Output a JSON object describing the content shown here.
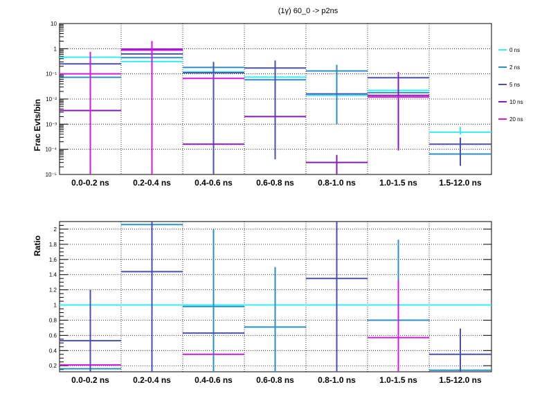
{
  "title": "(1γ) 60_0 -> p2ns",
  "categories": [
    "0.0-0.2 ns",
    "0.2-0.4 ns",
    "0.4-0.6 ns",
    "0.6-0.8 ns",
    "0.8-1.0 ns",
    "1.0-1.5 ns",
    "1.5-12.0 ns"
  ],
  "colors": {
    "0 ns": "#33eef2",
    "2 ns": "#2b8fc4",
    "5 ns": "#4a4fb2",
    "10 ns": "#8a1ab8",
    "20 ns": "#d21adf"
  },
  "chart_data": [
    {
      "type": "histogram",
      "name": "top",
      "ylabel": "Frac Evts/bin",
      "yscale": "log",
      "ylim": [
        1e-05,
        10
      ],
      "ytick_labels": [
        "10",
        "1",
        "10⁻¹",
        "10⁻²",
        "10⁻³",
        "10⁻⁴",
        "10⁻⁵"
      ],
      "grid": true,
      "legend": "right",
      "categories": [
        "0.0-0.2 ns",
        "0.2-0.4 ns",
        "0.4-0.6 ns",
        "0.6-0.8 ns",
        "0.8-1.0 ns",
        "1.0-1.5 ns",
        "1.5-12.0 ns"
      ],
      "series": [
        {
          "name": "0 ns",
          "values": [
            0.46,
            0.31,
            0.12,
            0.074,
            0.014,
            0.022,
            0.00048
          ],
          "err_lo": [
            null,
            null,
            null,
            null,
            null,
            null,
            0.00039
          ],
          "err_hi": [
            null,
            null,
            null,
            null,
            null,
            null,
            0.00078
          ]
        },
        {
          "name": "2 ns",
          "values": [
            0.073,
            0.44,
            0.18,
            0.058,
            0.13,
            0.018,
            6.5e-05
          ],
          "err_lo": [
            null,
            null,
            null,
            null,
            0.001,
            null,
            null
          ],
          "err_hi": [
            null,
            null,
            null,
            null,
            0.23,
            null,
            null
          ]
        },
        {
          "name": "5 ns",
          "values": [
            0.25,
            0.62,
            0.11,
            0.17,
            0.016,
            0.07,
            0.00016
          ],
          "err_lo": [
            null,
            null,
            1e-05,
            4e-05,
            null,
            null,
            2.2e-05
          ],
          "err_hi": [
            null,
            null,
            0.3,
            0.34,
            null,
            null,
            0.00029
          ]
        },
        {
          "name": "10 ns",
          "values": [
            0.0035,
            0.97,
            0.00016,
            0.002,
            3e-05,
            0.014,
            null
          ],
          "err_lo": [
            null,
            1e-05,
            null,
            null,
            1e-05,
            9e-05,
            null
          ],
          "err_hi": [
            null,
            2.0,
            null,
            null,
            6e-05,
            0.12,
            null
          ]
        },
        {
          "name": "20 ns",
          "values": [
            0.1,
            0.87,
            0.066,
            null,
            null,
            0.012,
            null
          ],
          "err_lo": [
            1e-05,
            1e-05,
            null,
            null,
            null,
            null,
            null
          ],
          "err_hi": [
            0.75,
            2.0,
            null,
            null,
            null,
            null,
            null
          ]
        }
      ]
    },
    {
      "type": "histogram",
      "name": "bottom",
      "ylabel": "Ratio",
      "yscale": "linear",
      "ylim": [
        0.12,
        2.1
      ],
      "yticks": [
        0.2,
        0.4,
        0.6,
        0.8,
        1,
        1.2,
        1.4,
        1.6,
        1.8,
        2
      ],
      "ytick_labels": [
        "0.2",
        "0.4",
        "0.6",
        "0.8",
        "1",
        "1.2",
        "1.4",
        "1.6",
        "1.8",
        "2"
      ],
      "grid": true,
      "categories": [
        "0.0-0.2 ns",
        "0.2-0.4 ns",
        "0.4-0.6 ns",
        "0.6-0.8 ns",
        "0.8-1.0 ns",
        "1.0-1.5 ns",
        "1.5-12.0 ns"
      ],
      "series": [
        {
          "name": "0 ns",
          "values": [
            1,
            1,
            1,
            1,
            1,
            1,
            1
          ],
          "err_lo": [
            null,
            null,
            null,
            null,
            null,
            null,
            null
          ],
          "err_hi": [
            null,
            null,
            null,
            null,
            null,
            null,
            null
          ]
        },
        {
          "name": "2 ns",
          "values": [
            0.16,
            2.06,
            0.98,
            0.71,
            null,
            0.8,
            0.14
          ],
          "err_lo": [
            null,
            null,
            0.12,
            0.12,
            null,
            0.12,
            null
          ],
          "err_hi": [
            null,
            null,
            2.0,
            1.5,
            null,
            1.86,
            null
          ]
        },
        {
          "name": "5 ns",
          "values": [
            0.53,
            1.44,
            0.63,
            null,
            1.35,
            null,
            0.35
          ],
          "err_lo": [
            0.12,
            0.12,
            null,
            null,
            0.12,
            null,
            0.12
          ],
          "err_hi": [
            1.2,
            2.1,
            null,
            null,
            2.1,
            null,
            0.69
          ]
        },
        {
          "name": "10 ns",
          "values": [
            null,
            null,
            null,
            null,
            null,
            null,
            null
          ],
          "err_lo": [
            null,
            null,
            null,
            null,
            null,
            null,
            null
          ],
          "err_hi": [
            null,
            null,
            null,
            null,
            null,
            null,
            null
          ]
        },
        {
          "name": "20 ns",
          "values": [
            0.21,
            null,
            0.35,
            null,
            null,
            0.57,
            null
          ],
          "err_lo": [
            null,
            null,
            null,
            null,
            null,
            0.12,
            null
          ],
          "err_hi": [
            null,
            null,
            null,
            null,
            null,
            1.33,
            null
          ]
        }
      ]
    }
  ]
}
